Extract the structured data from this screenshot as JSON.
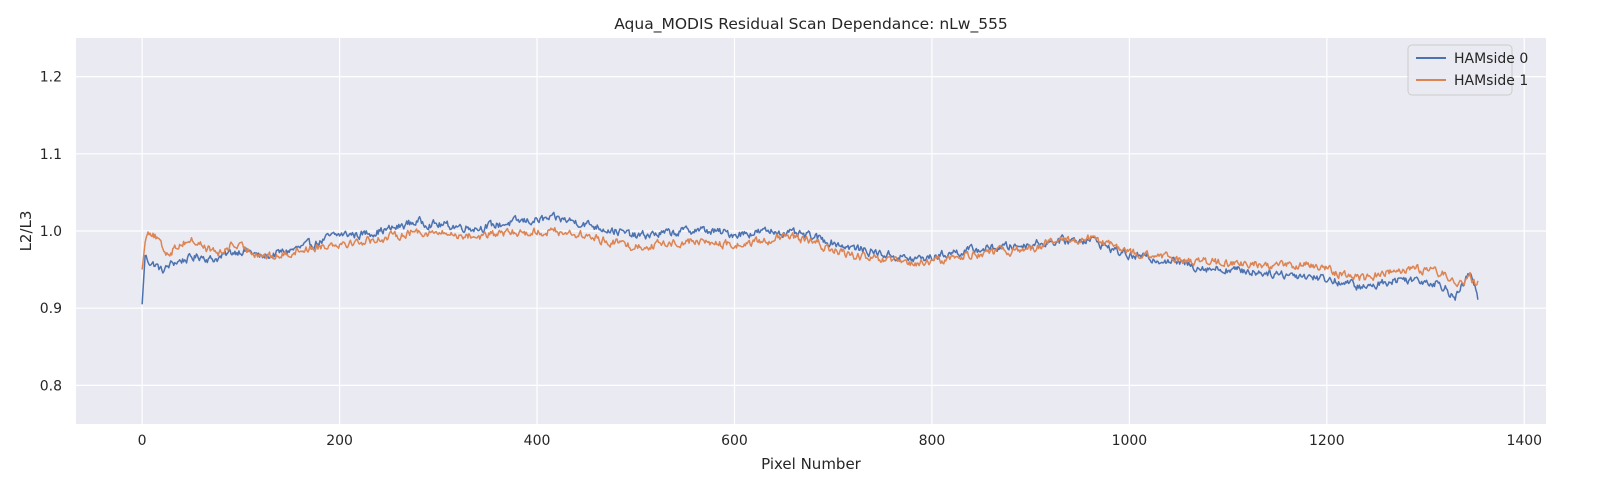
{
  "chart_data": {
    "type": "line",
    "title": "Aqua_MODIS Residual Scan Dependance: nLw_555",
    "xlabel": "Pixel Number",
    "ylabel": "L2/L3",
    "xlim": [
      -67,
      1422
    ],
    "ylim": [
      0.75,
      1.25
    ],
    "x_ticks": [
      0,
      200,
      400,
      600,
      800,
      1000,
      1200,
      1400
    ],
    "y_ticks": [
      0.8,
      0.9,
      1.0,
      1.1,
      1.2
    ],
    "x_tick_labels": [
      "0",
      "200",
      "400",
      "600",
      "800",
      "1000",
      "1200",
      "1400"
    ],
    "y_tick_labels": [
      "0.8",
      "0.9",
      "1.0",
      "1.1",
      "1.2"
    ],
    "grid": true,
    "legend_position": "top-right",
    "colors": {
      "background": "#eaeaf2",
      "grid": "#ffffff",
      "hamside0": "#4c72b0",
      "hamside1": "#dd8452"
    },
    "series": [
      {
        "name": "HAMside 0",
        "color": "#4c72b0",
        "x": [
          0,
          3,
          6,
          10,
          15,
          20,
          25,
          30,
          40,
          50,
          60,
          70,
          80,
          90,
          100,
          110,
          120,
          130,
          140,
          150,
          160,
          170,
          180,
          190,
          200,
          210,
          220,
          230,
          240,
          250,
          260,
          270,
          280,
          290,
          300,
          320,
          340,
          360,
          380,
          400,
          420,
          440,
          460,
          480,
          500,
          520,
          540,
          560,
          580,
          600,
          620,
          640,
          660,
          680,
          700,
          720,
          740,
          760,
          780,
          800,
          820,
          840,
          860,
          880,
          900,
          920,
          940,
          960,
          980,
          1000,
          1020,
          1040,
          1060,
          1080,
          1100,
          1120,
          1140,
          1160,
          1180,
          1200,
          1220,
          1240,
          1260,
          1280,
          1300,
          1310,
          1320,
          1330,
          1340,
          1345,
          1350,
          1353
        ],
        "values": [
          0.905,
          0.968,
          0.962,
          0.958,
          0.955,
          0.948,
          0.952,
          0.958,
          0.962,
          0.965,
          0.968,
          0.963,
          0.966,
          0.972,
          0.975,
          0.973,
          0.966,
          0.968,
          0.972,
          0.975,
          0.978,
          0.982,
          0.986,
          0.992,
          0.995,
          0.996,
          0.995,
          0.998,
          1.0,
          1.002,
          1.005,
          1.01,
          1.012,
          1.01,
          1.008,
          1.006,
          1.004,
          1.008,
          1.012,
          1.014,
          1.016,
          1.012,
          1.006,
          1.0,
          0.993,
          0.996,
          0.998,
          1.002,
          0.999,
          0.996,
          0.998,
          1.0,
          0.996,
          0.992,
          0.985,
          0.978,
          0.973,
          0.968,
          0.963,
          0.966,
          0.972,
          0.975,
          0.978,
          0.98,
          0.983,
          0.986,
          0.988,
          0.99,
          0.978,
          0.968,
          0.965,
          0.962,
          0.956,
          0.952,
          0.95,
          0.948,
          0.946,
          0.944,
          0.942,
          0.938,
          0.932,
          0.926,
          0.935,
          0.938,
          0.936,
          0.933,
          0.928,
          0.912,
          0.935,
          0.945,
          0.93,
          0.91
        ]
      },
      {
        "name": "HAMside 1",
        "color": "#dd8452",
        "x": [
          0,
          3,
          6,
          10,
          15,
          20,
          25,
          30,
          40,
          50,
          60,
          70,
          80,
          90,
          100,
          110,
          120,
          130,
          140,
          150,
          160,
          170,
          180,
          190,
          200,
          210,
          220,
          230,
          240,
          250,
          260,
          270,
          280,
          290,
          300,
          320,
          340,
          360,
          380,
          400,
          420,
          440,
          460,
          480,
          500,
          520,
          540,
          560,
          580,
          600,
          620,
          640,
          660,
          680,
          700,
          720,
          740,
          760,
          780,
          800,
          820,
          840,
          860,
          880,
          900,
          920,
          940,
          960,
          980,
          1000,
          1020,
          1040,
          1060,
          1080,
          1100,
          1120,
          1140,
          1160,
          1180,
          1200,
          1220,
          1240,
          1260,
          1280,
          1300,
          1310,
          1320,
          1330,
          1340,
          1345,
          1350,
          1353
        ],
        "values": [
          0.95,
          0.985,
          1.003,
          0.998,
          0.99,
          0.978,
          0.972,
          0.975,
          0.985,
          0.988,
          0.982,
          0.975,
          0.97,
          0.983,
          0.978,
          0.975,
          0.97,
          0.966,
          0.968,
          0.972,
          0.976,
          0.978,
          0.98,
          0.983,
          0.985,
          0.985,
          0.986,
          0.988,
          0.99,
          0.992,
          0.995,
          0.998,
          1.0,
          0.998,
          0.997,
          0.995,
          0.993,
          0.996,
          0.998,
          0.999,
          1.0,
          0.996,
          0.99,
          0.985,
          0.98,
          0.982,
          0.985,
          0.987,
          0.984,
          0.981,
          0.985,
          0.99,
          0.992,
          0.985,
          0.975,
          0.968,
          0.963,
          0.96,
          0.957,
          0.96,
          0.965,
          0.97,
          0.972,
          0.974,
          0.978,
          0.985,
          0.988,
          0.99,
          0.982,
          0.972,
          0.968,
          0.965,
          0.962,
          0.96,
          0.958,
          0.957,
          0.956,
          0.956,
          0.955,
          0.95,
          0.944,
          0.938,
          0.948,
          0.952,
          0.95,
          0.947,
          0.943,
          0.938,
          0.932,
          0.94,
          0.93,
          0.935
        ]
      }
    ]
  }
}
